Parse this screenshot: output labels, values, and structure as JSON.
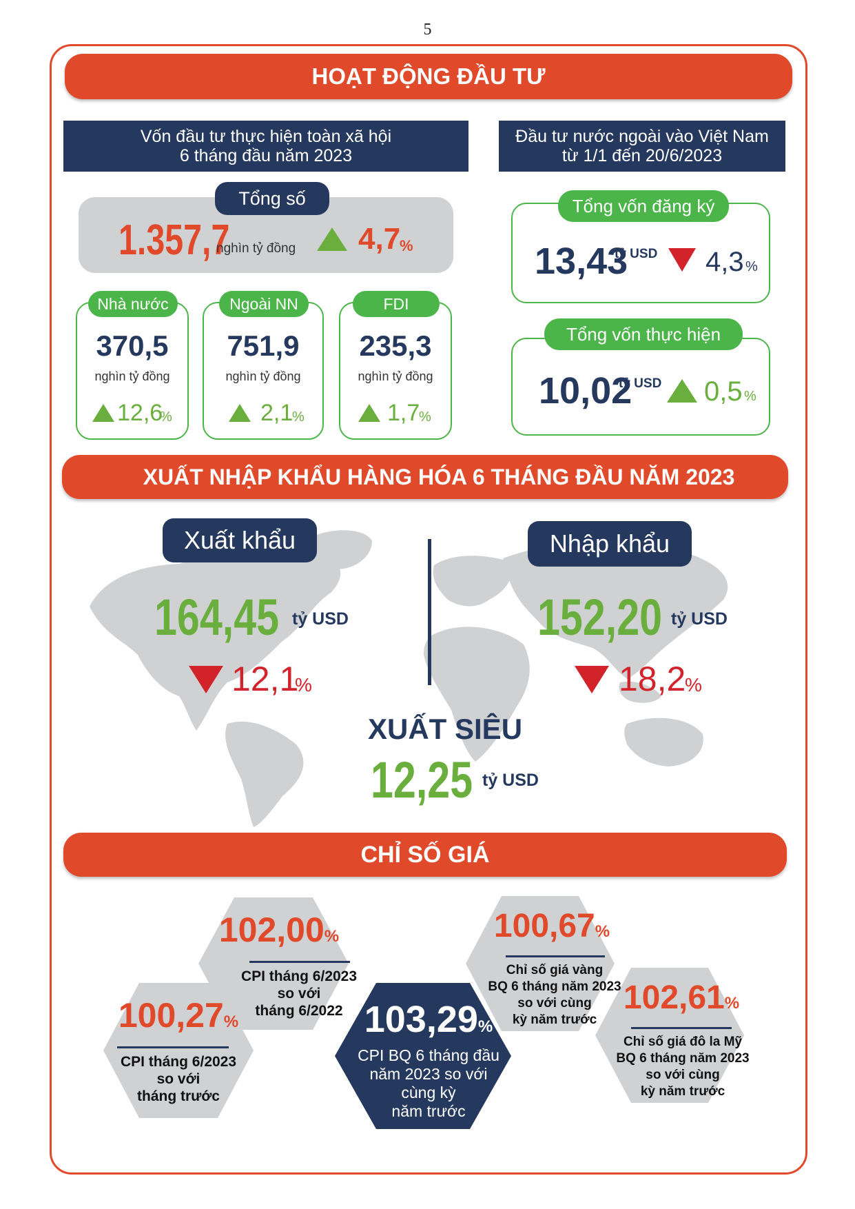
{
  "page_number": "5",
  "investment": {
    "banner": "HOẠT ĐỘNG ĐẦU TƯ",
    "total_social": {
      "header_line1": "Vốn đầu tư thực hiện toàn xã hội",
      "header_line2": "6 tháng đầu năm 2023",
      "total_label": "Tổng số",
      "total_value": "1.357,7",
      "total_unit": "nghìn tỷ đồng",
      "total_change": "4,7",
      "percent": "%",
      "sectors": [
        {
          "label": "Nhà nước",
          "value": "370,5",
          "unit": "nghìn tỷ đồng",
          "change": "12,6",
          "percent": "%"
        },
        {
          "label": "Ngoài NN",
          "value": "751,9",
          "unit": "nghìn tỷ đồng",
          "change": "2,1",
          "percent": "%"
        },
        {
          "label": "FDI",
          "value": "235,3",
          "unit": "nghìn tỷ đồng",
          "change": "1,7",
          "percent": "%"
        }
      ]
    },
    "fdi": {
      "header_line1": "Đầu tư nước ngoài vào Việt Nam",
      "header_line2": "từ 1/1 đến 20/6/2023",
      "registered": {
        "label": "Tổng vốn đăng ký",
        "value": "13,43",
        "unit": "tỷ USD",
        "change": "4,3",
        "percent": "%",
        "direction": "down"
      },
      "implemented": {
        "label": "Tổng vốn thực hiện",
        "value": "10,02",
        "unit": "tỷ USD",
        "change": "0,5",
        "percent": "%",
        "direction": "up"
      }
    }
  },
  "trade": {
    "banner": "XUẤT NHẬP KHẨU HÀNG HÓA 6 THÁNG ĐẦU NĂM 2023",
    "export": {
      "label": "Xuất khẩu",
      "value": "164,45",
      "unit": "tỷ USD",
      "change": "12,1",
      "percent": "%",
      "direction": "down"
    },
    "import": {
      "label": "Nhập khẩu",
      "value": "152,20",
      "unit": "tỷ USD",
      "change": "18,2",
      "percent": "%",
      "direction": "down"
    },
    "surplus": {
      "label": "XUẤT SIÊU",
      "value": "12,25",
      "unit": "tỷ USD"
    }
  },
  "prices": {
    "banner": "CHỈ SỐ GIÁ",
    "items": [
      {
        "value": "100,27",
        "percent": "%",
        "lines": [
          "CPI tháng 6/2023",
          "so với",
          "tháng trước"
        ]
      },
      {
        "value": "102,00",
        "percent": "%",
        "lines": [
          "CPI tháng 6/2023",
          "so với",
          "tháng 6/2022"
        ]
      },
      {
        "value": "103,29",
        "percent": "%",
        "lines": [
          "CPI BQ 6 tháng đầu",
          "năm 2023 so với",
          "cùng kỳ",
          "năm trước"
        ]
      },
      {
        "value": "100,67",
        "percent": "%",
        "lines": [
          "Chỉ số giá vàng",
          "BQ 6 tháng năm 2023",
          "so với cùng",
          "kỳ năm trước"
        ]
      },
      {
        "value": "102,61",
        "percent": "%",
        "lines": [
          "Chỉ số giá đô la Mỹ",
          "BQ 6 tháng năm 2023",
          "so với cùng",
          "kỳ năm trước"
        ]
      }
    ]
  },
  "colors": {
    "accent": "#e0492a",
    "navy": "#25385e",
    "green": "#4cb54a",
    "red": "#d2232a",
    "hex_gray": "#cfd1d3"
  }
}
